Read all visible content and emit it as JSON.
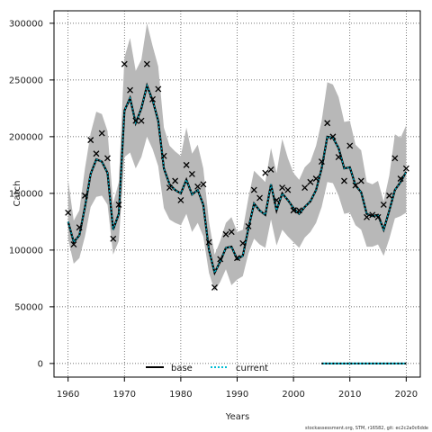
{
  "chart_data": {
    "type": "line",
    "xlabel": "Years",
    "ylabel": "Catch",
    "xlim": [
      1957.5,
      2022.5
    ],
    "ylim": [
      -12000,
      311000
    ],
    "xticks": [
      1960,
      1970,
      1980,
      1990,
      2000,
      2010,
      2020
    ],
    "yticks": [
      0,
      50000,
      100000,
      150000,
      200000,
      250000,
      300000
    ],
    "xtick_labels": [
      "1960",
      "1970",
      "1980",
      "1990",
      "2000",
      "2010",
      "2020"
    ],
    "ytick_labels": [
      "0",
      "50000",
      "100000",
      "150000",
      "200000",
      "250000",
      "300000"
    ],
    "grid": true,
    "legend_position": "bottom-left",
    "legend": [
      {
        "label": "base",
        "style": "solid",
        "color": "#000000"
      },
      {
        "label": "current",
        "style": "dotted",
        "color": "#00bcd4"
      }
    ],
    "years": [
      1960,
      1961,
      1962,
      1963,
      1964,
      1965,
      1966,
      1967,
      1968,
      1969,
      1970,
      1971,
      1972,
      1973,
      1974,
      1975,
      1976,
      1977,
      1978,
      1979,
      1980,
      1981,
      1982,
      1983,
      1984,
      1985,
      1986,
      1987,
      1988,
      1989,
      1990,
      1991,
      1992,
      1993,
      1994,
      1995,
      1996,
      1997,
      1998,
      1999,
      2000,
      2001,
      2002,
      2003,
      2004,
      2005,
      2006,
      2007,
      2008,
      2009,
      2010,
      2011,
      2012,
      2013,
      2014,
      2015,
      2016,
      2017,
      2018,
      2019,
      2020
    ],
    "observed_catch": [
      133000,
      105000,
      120000,
      148000,
      197000,
      185000,
      203000,
      181000,
      110000,
      140000,
      264000,
      241000,
      214000,
      214000,
      264000,
      233000,
      242000,
      183000,
      155000,
      161000,
      144000,
      175000,
      167000,
      156000,
      158000,
      107000,
      67000,
      92000,
      114000,
      116000,
      93000,
      106000,
      121000,
      153000,
      146000,
      168000,
      171000,
      144000,
      155000,
      153000,
      135000,
      135000,
      155000,
      160000,
      163000,
      178000,
      212000,
      200000,
      182000,
      161000,
      192000,
      157000,
      161000,
      129000,
      131000,
      129000,
      140000,
      148000,
      181000,
      163000,
      172000
    ],
    "series": [
      {
        "name": "base",
        "style": "solid",
        "color": "#000000",
        "values": [
          125000,
          107000,
          113000,
          138000,
          167000,
          180000,
          178000,
          168000,
          118000,
          132000,
          223000,
          234000,
          212000,
          225000,
          245000,
          232000,
          214000,
          172000,
          158000,
          153000,
          150000,
          162000,
          149000,
          153000,
          140000,
          100000,
          80000,
          90000,
          102000,
          103000,
          92000,
          95000,
          119000,
          141000,
          135000,
          131000,
          158000,
          135000,
          150000,
          144000,
          137000,
          132000,
          138000,
          143000,
          153000,
          172000,
          200000,
          199000,
          190000,
          172000,
          173000,
          157000,
          151000,
          132000,
          130000,
          131000,
          118000,
          135000,
          153000,
          160000,
          169000
        ],
        "lower": [
          110000,
          88000,
          93000,
          112000,
          138000,
          147000,
          148000,
          140000,
          96000,
          108000,
          182000,
          186000,
          172000,
          182000,
          200000,
          189000,
          174000,
          137000,
          127000,
          124000,
          122000,
          132000,
          116000,
          124000,
          112000,
          80000,
          64000,
          72000,
          83000,
          69000,
          74000,
          77000,
          97000,
          110000,
          105000,
          102000,
          127000,
          104000,
          118000,
          112000,
          107000,
          102000,
          111000,
          116000,
          124000,
          138000,
          160000,
          159000,
          148000,
          132000,
          133000,
          122000,
          118000,
          103000,
          103000,
          105000,
          95000,
          110000,
          128000,
          130000,
          133000
        ],
        "upper": [
          162000,
          126000,
          135000,
          172000,
          203000,
          222000,
          220000,
          205000,
          141000,
          160000,
          270000,
          287000,
          258000,
          268000,
          300000,
          280000,
          262000,
          208000,
          192000,
          187000,
          183000,
          208000,
          185000,
          193000,
          172000,
          125000,
          96000,
          108000,
          124000,
          129000,
          116000,
          118000,
          146000,
          170000,
          165000,
          160000,
          190000,
          168000,
          198000,
          181000,
          168000,
          162000,
          173000,
          178000,
          192000,
          214000,
          248000,
          246000,
          235000,
          213000,
          214000,
          193000,
          188000,
          160000,
          158000,
          161000,
          143000,
          166000,
          202000,
          199000,
          210000
        ]
      },
      {
        "name": "current",
        "style": "dotted",
        "color": "#00bcd4",
        "values": [
          125000,
          107000,
          113000,
          138000,
          167000,
          180000,
          178000,
          168000,
          118000,
          132000,
          223000,
          234000,
          212000,
          225000,
          245000,
          232000,
          214000,
          172000,
          158000,
          153000,
          150000,
          162000,
          149000,
          153000,
          140000,
          100000,
          80000,
          90000,
          102000,
          103000,
          92000,
          95000,
          119000,
          141000,
          135000,
          131000,
          158000,
          135000,
          150000,
          144000,
          137000,
          132000,
          138000,
          143000,
          153000,
          172000,
          200000,
          199000,
          190000,
          172000,
          173000,
          157000,
          151000,
          132000,
          130000,
          131000,
          118000,
          135000,
          153000,
          160000,
          169000
        ]
      },
      {
        "name": "current_projection",
        "style": "dotted",
        "color": "#00bcd4",
        "x": [
          2005,
          2020
        ],
        "values": [
          0,
          0
        ]
      }
    ]
  },
  "footer": "stockassessment.org, STM, r16582, git: ec2c2a0c6dde"
}
